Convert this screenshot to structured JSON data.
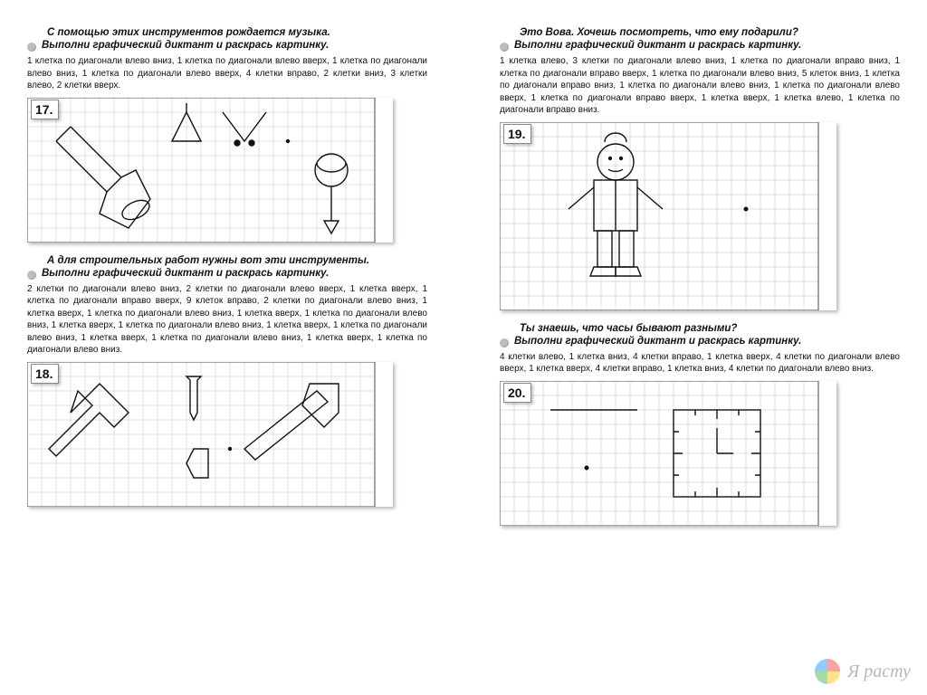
{
  "grid": {
    "cell": 16,
    "stroke": "#bfbfbf",
    "border": "#666666"
  },
  "draw_stroke": "#111111",
  "watermark": "Я расту",
  "exercises": [
    {
      "num": "17.",
      "intro": "С помощью этих инструментов рождается музыка.",
      "task": "Выполни графический диктант и раскрась картинку.",
      "instructions": "1 клетка по диагонали влево вниз, 1 клетка по диагонали влево вверх, 1 клетка по диагонали влево вниз, 1 клетка по диагонали влево вверх, 4 клетки вправо, 2 клетки вниз, 3 клетки влево, 2 клетки вверх.",
      "grid_cols": 24,
      "grid_rows": 10
    },
    {
      "num": "18.",
      "intro": "А для строительных работ нужны вот эти инструменты.",
      "task": "Выполни графический диктант и раскрась картинку.",
      "instructions": "2 клетки по диагонали влево вниз, 2 клетки по диагонали влево вверх, 1 клетка вверх, 1 клетка по диагонали вправо вверх, 9 клеток вправо, 2 клетки по диагонали влево вниз, 1 клетка вверх, 1 клетка по диагонали влево вниз, 1 клетка вверх, 1 клетка по диагонали влево вниз, 1 клетка вверх, 1 клетка по диагонали влево вниз, 1 клетка вверх, 1 клетка по диагонали влево вниз, 1 клетка вверх, 1 клетка по диагонали влево вниз, 1 клетка вверх, 1 клетка по диагонали влево вниз.",
      "grid_cols": 24,
      "grid_rows": 10
    },
    {
      "num": "19.",
      "intro": "Это Вова. Хочешь посмотреть, что ему подарили?",
      "task": "Выполни графический диктант и раскрась картинку.",
      "instructions": "1 клетка влево, 3 клетки по диагонали влево вниз, 1 клетка по диагонали вправо вниз, 1 клетка по диагонали вправо вверх, 1 клетка по диагонали влево вниз, 5 клеток вниз, 1 клетка по диагонали вправо вниз, 1 клетка по диагонали влево вниз, 1 клетка по диагонали влево вверх, 1 клетка по диагонали вправо вверх, 1 клетка вверх, 1 клетка влево, 1 клетка по диагонали вправо вниз.",
      "grid_cols": 22,
      "grid_rows": 13
    },
    {
      "num": "20.",
      "intro": "Ты знаешь, что часы бывают разными?",
      "task": "Выполни графический диктант и раскрась картинку.",
      "instructions": "4 клетки влево, 1 клетка вниз, 4 клетки вправо, 1 клетка вверх, 4 клетки по диагонали влево вверх, 1 клетка вверх, 4 клетки вправо, 1 клетка вниз, 4 клетки по диагонали влево вниз.",
      "grid_cols": 22,
      "grid_rows": 10
    }
  ]
}
